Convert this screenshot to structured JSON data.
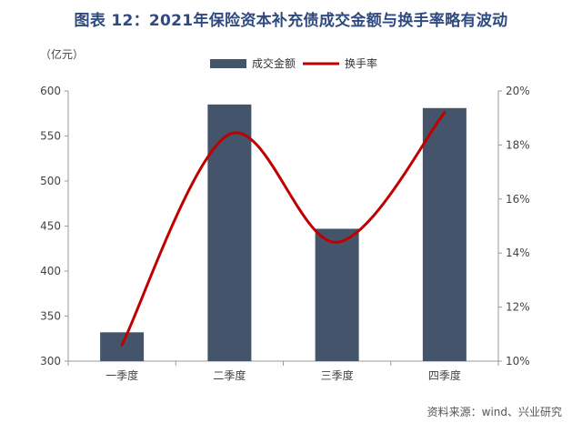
{
  "chart_data": {
    "type": "bar",
    "title": "图表 12：2021年保险资本补充债成交金额与换手率略有波动",
    "y_unit_label": "（亿元）",
    "categories": [
      "一季度",
      "二季度",
      "三季度",
      "四季度"
    ],
    "series": [
      {
        "name": "成交金额",
        "type": "bar",
        "axis": "left",
        "values": [
          332,
          585,
          447,
          581
        ],
        "color": "#44546a"
      },
      {
        "name": "换手率",
        "type": "line",
        "smooth": true,
        "axis": "right",
        "values": [
          10.6,
          18.4,
          14.4,
          19.2
        ],
        "color": "#c00000"
      }
    ],
    "y_left": {
      "ylim": [
        300,
        600
      ],
      "ticks": [
        "300",
        "350",
        "400",
        "450",
        "500",
        "550",
        "600"
      ]
    },
    "y_right": {
      "ylim": [
        10,
        20
      ],
      "ticks": [
        "10%",
        "12%",
        "14%",
        "16%",
        "18%",
        "20%"
      ]
    },
    "legend_position": "top-center",
    "grid": false,
    "source": "资料来源：wind、兴业研究"
  }
}
